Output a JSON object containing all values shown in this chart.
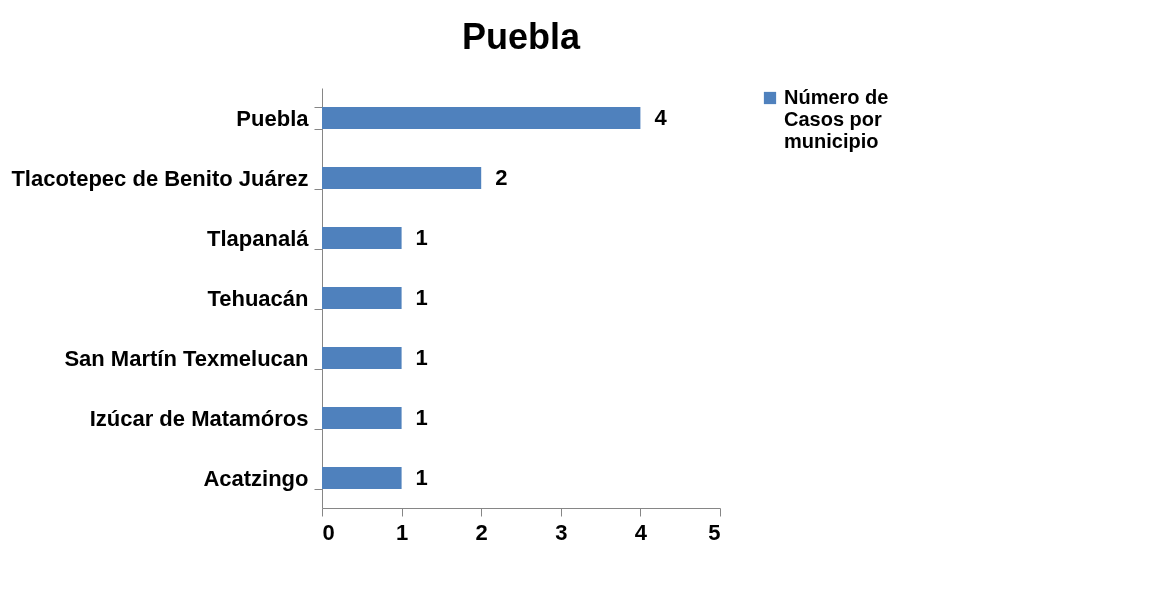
{
  "chart_data": {
    "type": "bar",
    "orientation": "horizontal",
    "title": "Puebla",
    "categories": [
      "Puebla",
      "Tlacotepec de Benito Juárez",
      "Tlapanalá",
      "Tehuacán",
      "San Martín Texmelucan",
      "Izúcar de Matamóros",
      "Acatzingo"
    ],
    "series": [
      {
        "name": "Número de Casos por municipio",
        "color": "#4f81bd",
        "values": [
          4,
          2,
          1,
          1,
          1,
          1,
          1
        ]
      }
    ],
    "xlim": [
      0,
      5
    ],
    "xticks": [
      0,
      1,
      2,
      3,
      4,
      5
    ],
    "data_labels": true,
    "grid": false,
    "legend": "right"
  }
}
